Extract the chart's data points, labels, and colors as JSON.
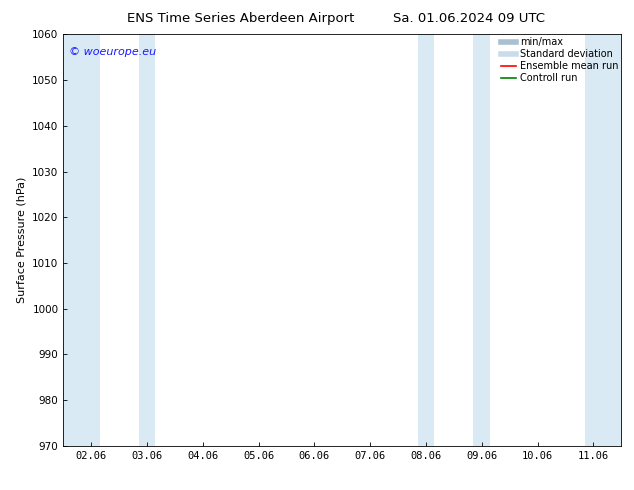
{
  "title_left": "ENS Time Series Aberdeen Airport",
  "title_right": "Sa. 01.06.2024 09 UTC",
  "ylabel": "Surface Pressure (hPa)",
  "ylim": [
    970,
    1060
  ],
  "yticks": [
    970,
    980,
    990,
    1000,
    1010,
    1020,
    1030,
    1040,
    1050,
    1060
  ],
  "xtick_labels": [
    "02.06",
    "03.06",
    "04.06",
    "05.06",
    "06.06",
    "07.06",
    "08.06",
    "09.06",
    "10.06",
    "11.06"
  ],
  "xtick_positions": [
    0,
    1,
    2,
    3,
    4,
    5,
    6,
    7,
    8,
    9
  ],
  "xlim": [
    -0.5,
    9.5
  ],
  "shaded_bands": [
    {
      "x_start": -0.5,
      "x_end": 0.15,
      "color": "#daeaf5"
    },
    {
      "x_start": 0.85,
      "x_end": 1.15,
      "color": "#daeaf5"
    },
    {
      "x_start": 5.85,
      "x_end": 6.15,
      "color": "#daeaf5"
    },
    {
      "x_start": 6.85,
      "x_end": 7.15,
      "color": "#daeaf5"
    },
    {
      "x_start": 8.85,
      "x_end": 9.5,
      "color": "#daeaf5"
    }
  ],
  "legend_entries": [
    {
      "label": "min/max",
      "color": "#a8c0d0",
      "lw": 4
    },
    {
      "label": "Standard deviation",
      "color": "#c8dcea",
      "lw": 4
    },
    {
      "label": "Ensemble mean run",
      "color": "red",
      "lw": 1.2
    },
    {
      "label": "Controll run",
      "color": "green",
      "lw": 1.2
    }
  ],
  "watermark": "© woeurope.eu",
  "watermark_color": "#1a1aff",
  "background_color": "#ffffff",
  "title_fontsize": 9.5,
  "label_fontsize": 8,
  "tick_fontsize": 7.5,
  "legend_fontsize": 7
}
